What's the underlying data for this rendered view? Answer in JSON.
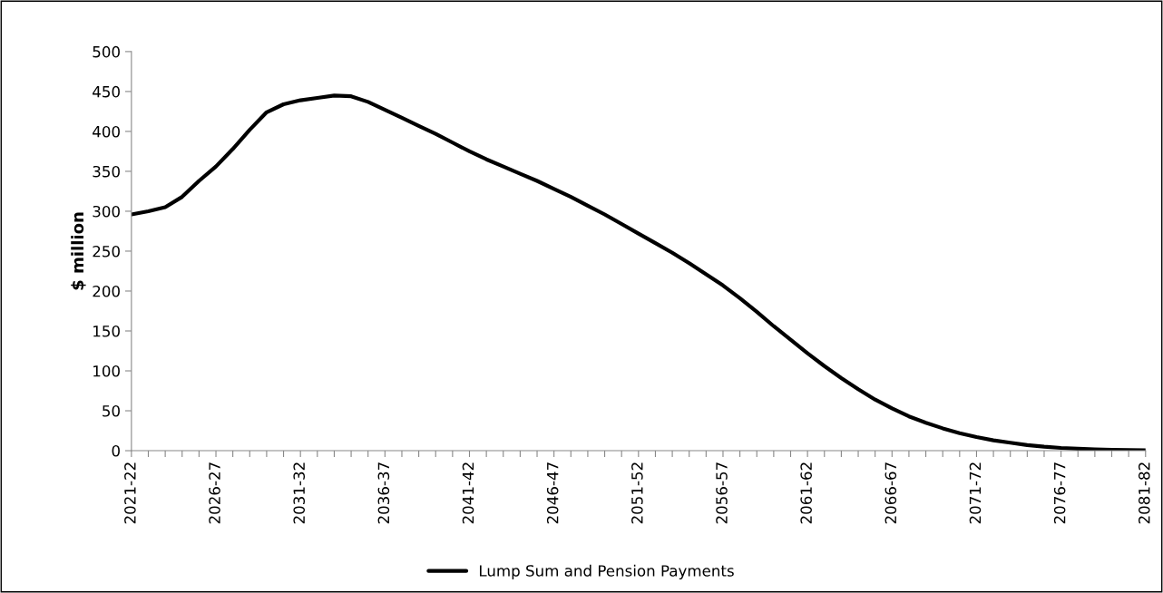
{
  "chart_data": {
    "type": "line",
    "ylabel": "$ million",
    "categories": [
      "2021-22",
      null,
      null,
      null,
      null,
      "2026-27",
      null,
      null,
      null,
      null,
      "2031-32",
      null,
      null,
      null,
      null,
      "2036-37",
      null,
      null,
      null,
      null,
      "2041-42",
      null,
      null,
      null,
      null,
      "2046-47",
      null,
      null,
      null,
      null,
      "2051-52",
      null,
      null,
      null,
      null,
      "2056-57",
      null,
      null,
      null,
      null,
      "2061-62",
      null,
      null,
      null,
      null,
      "2066-67",
      null,
      null,
      null,
      null,
      "2071-72",
      null,
      null,
      null,
      null,
      "2076-77",
      null,
      null,
      null,
      null,
      "2081-82"
    ],
    "series": [
      {
        "name": "Lump Sum and Pension Payments",
        "color": "#000000",
        "values": [
          296,
          300,
          305,
          318,
          338,
          356,
          378,
          402,
          424,
          434,
          439,
          442,
          445,
          444,
          437,
          427,
          417,
          407,
          397,
          386,
          375,
          365,
          356,
          347,
          338,
          328,
          318,
          307,
          296,
          284,
          272,
          260,
          248,
          235,
          221,
          207,
          191,
          174,
          156,
          139,
          122,
          106,
          91,
          77,
          64,
          53,
          43,
          35,
          28,
          22,
          17,
          13,
          10,
          7,
          5,
          3.5,
          2.5,
          1.7,
          1.1,
          0.7,
          0.4
        ]
      }
    ],
    "ylim": [
      0,
      500
    ],
    "yticks": [
      0,
      50,
      100,
      150,
      200,
      250,
      300,
      350,
      400,
      450,
      500
    ],
    "grid": false,
    "legend": "bottom",
    "marker": "none",
    "line_style": "solid"
  }
}
